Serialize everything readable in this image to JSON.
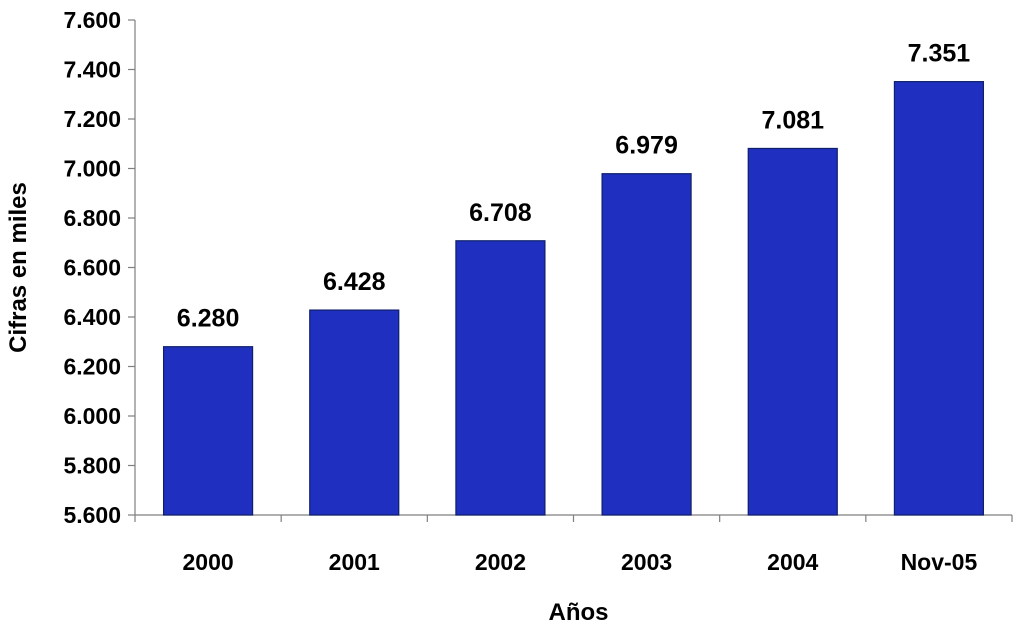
{
  "chart_data": {
    "type": "bar",
    "categories": [
      "2000",
      "2001",
      "2002",
      "2003",
      "2004",
      "Nov-05"
    ],
    "values": [
      6280,
      6428,
      6708,
      6979,
      7081,
      7351
    ],
    "value_labels": [
      "6.280",
      "6.428",
      "6.708",
      "6.979",
      "7.081",
      "7.351"
    ],
    "y_ticks": [
      5600,
      5800,
      6000,
      6200,
      6400,
      6600,
      6800,
      7000,
      7200,
      7400,
      7600
    ],
    "y_tick_labels": [
      "5.600",
      "5.800",
      "6.000",
      "6.200",
      "6.400",
      "6.600",
      "6.800",
      "7.000",
      "7.200",
      "7.400",
      "7.600"
    ],
    "ylim": [
      5600,
      7600
    ],
    "xlabel": "Años",
    "ylabel": "Cifras en miles",
    "title": "",
    "grid": false,
    "legend": "none",
    "colors": {
      "bar_fill": "#1f2fbf",
      "bar_edge": "#0f1f6a",
      "axis": "#7f7f7f"
    }
  }
}
